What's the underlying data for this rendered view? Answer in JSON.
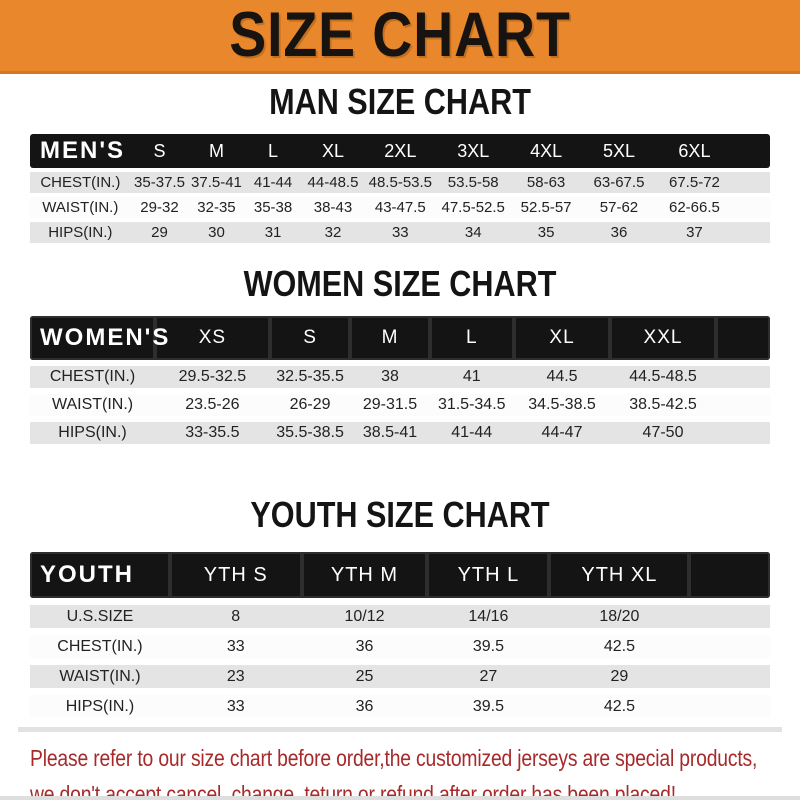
{
  "header": {
    "title": "SIZE CHART"
  },
  "colors": {
    "banner_orange": "#E8872B",
    "bar_black": "#141414",
    "row_gray": "#E4E4E4",
    "footer_red": "#A72A2B"
  },
  "sections": [
    {
      "heading": "MAN SIZE CHART",
      "table": {
        "label": "MEN'S",
        "columns": [
          "S",
          "M",
          "L",
          "XL",
          "2XL",
          "3XL",
          "4XL",
          "5XL",
          "6XL"
        ],
        "rows": [
          {
            "label": "CHEST(IN.)",
            "values": [
              "35-37.5",
              "37.5-41",
              "41-44",
              "44-48.5",
              "48.5-53.5",
              "53.5-58",
              "58-63",
              "63-67.5",
              "67.5-72"
            ]
          },
          {
            "label": "WAIST(IN.)",
            "values": [
              "29-32",
              "32-35",
              "35-38",
              "38-43",
              "43-47.5",
              "47.5-52.5",
              "52.5-57",
              "57-62",
              "62-66.5"
            ]
          },
          {
            "label": "HIPS(IN.)",
            "values": [
              "29",
              "30",
              "31",
              "32",
              "33",
              "34",
              "35",
              "36",
              "37"
            ]
          }
        ]
      }
    },
    {
      "heading": "WOMEN SIZE CHART",
      "table": {
        "label": "WOMEN'S",
        "columns": [
          "XS",
          "S",
          "M",
          "L",
          "XL",
          "XXL"
        ],
        "rows": [
          {
            "label": "CHEST(IN.)",
            "values": [
              "29.5-32.5",
              "32.5-35.5",
              "38",
              "41",
              "44.5",
              "44.5-48.5"
            ]
          },
          {
            "label": "WAIST(IN.)",
            "values": [
              "23.5-26",
              "26-29",
              "29-31.5",
              "31.5-34.5",
              "34.5-38.5",
              "38.5-42.5"
            ]
          },
          {
            "label": "HIPS(IN.)",
            "values": [
              "33-35.5",
              "35.5-38.5",
              "38.5-41",
              "41-44",
              "44-47",
              "47-50"
            ]
          }
        ]
      }
    },
    {
      "heading": "YOUTH SIZE CHART",
      "table": {
        "label": "YOUTH",
        "columns": [
          "YTH S",
          "YTH M",
          "YTH L",
          "YTH XL"
        ],
        "rows": [
          {
            "label": "U.S.SIZE",
            "values": [
              "8",
              "10/12",
              "14/16",
              "18/20"
            ]
          },
          {
            "label": "CHEST(IN.)",
            "values": [
              "33",
              "36",
              "39.5",
              "42.5"
            ]
          },
          {
            "label": "WAIST(IN.)",
            "values": [
              "23",
              "25",
              "27",
              "29"
            ]
          },
          {
            "label": "HIPS(IN.)",
            "values": [
              "33",
              "36",
              "39.5",
              "42.5"
            ]
          }
        ]
      }
    }
  ],
  "footer": {
    "lines": [
      "Please refer to our size chart before order,the customized jerseys are special products,",
      "we don't accept cancel, change, teturn or refund after order has been placed!"
    ]
  }
}
